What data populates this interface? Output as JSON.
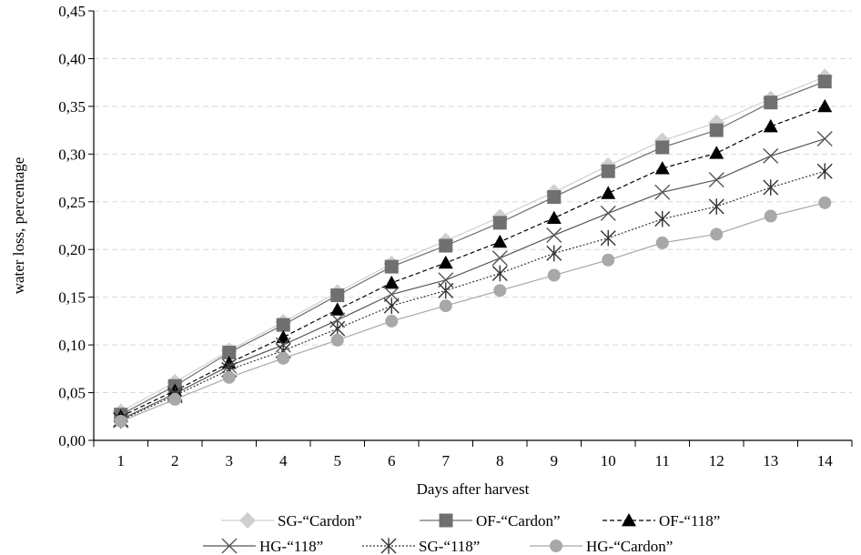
{
  "chart_data": {
    "type": "line",
    "xlabel": "Days after harvest",
    "ylabel": "water loss, percentage",
    "x": [
      1,
      2,
      3,
      4,
      5,
      6,
      7,
      8,
      9,
      10,
      11,
      12,
      13,
      14
    ],
    "x_tick_labels": [
      "1",
      "2",
      "3",
      "4",
      "5",
      "6",
      "7",
      "8",
      "9",
      "10",
      "11",
      "12",
      "13",
      "14"
    ],
    "ylim": [
      0,
      0.45
    ],
    "y_ticks": [
      0,
      0.05,
      0.1,
      0.15,
      0.2,
      0.25,
      0.3,
      0.35,
      0.4,
      0.45
    ],
    "y_tick_labels": [
      "0,00",
      "0,05",
      "0,10",
      "0,15",
      "0,20",
      "0,25",
      "0,30",
      "0,35",
      "0,40",
      "0,45"
    ],
    "grid": "horizontal dashed",
    "legend_position": "bottom",
    "series": [
      {
        "name": "SG-“Cardon”",
        "marker": "diamond",
        "line": "solid",
        "color": "#cfcfcf",
        "values": [
          0.03,
          0.061,
          0.094,
          0.124,
          0.155,
          0.185,
          0.209,
          0.234,
          0.26,
          0.288,
          0.314,
          0.333,
          0.358,
          0.381
        ]
      },
      {
        "name": "OF-“Cardon”",
        "marker": "square",
        "line": "solid",
        "color": "#707070",
        "values": [
          0.027,
          0.057,
          0.092,
          0.121,
          0.152,
          0.182,
          0.204,
          0.228,
          0.255,
          0.282,
          0.307,
          0.325,
          0.354,
          0.376
        ]
      },
      {
        "name": "OF-“118”",
        "marker": "triangle",
        "line": "dashed",
        "color": "#000000",
        "values": [
          0.025,
          0.052,
          0.081,
          0.108,
          0.137,
          0.165,
          0.186,
          0.208,
          0.233,
          0.259,
          0.285,
          0.301,
          0.329,
          0.35
        ]
      },
      {
        "name": "HG-“118”",
        "marker": "x",
        "line": "solid",
        "color": "#555555",
        "values": [
          0.022,
          0.049,
          0.078,
          0.1,
          0.126,
          0.153,
          0.168,
          0.191,
          0.215,
          0.238,
          0.26,
          0.273,
          0.298,
          0.316
        ]
      },
      {
        "name": "SG-“118”",
        "marker": "asterisk",
        "line": "dotted",
        "color": "#333333",
        "values": [
          0.021,
          0.047,
          0.074,
          0.094,
          0.117,
          0.141,
          0.157,
          0.175,
          0.196,
          0.212,
          0.232,
          0.245,
          0.265,
          0.282
        ]
      },
      {
        "name": "HG-“Cardon”",
        "marker": "circle",
        "line": "solid",
        "color": "#a8a8a8",
        "values": [
          0.02,
          0.043,
          0.066,
          0.086,
          0.105,
          0.125,
          0.141,
          0.157,
          0.173,
          0.189,
          0.207,
          0.216,
          0.235,
          0.249
        ]
      }
    ]
  }
}
